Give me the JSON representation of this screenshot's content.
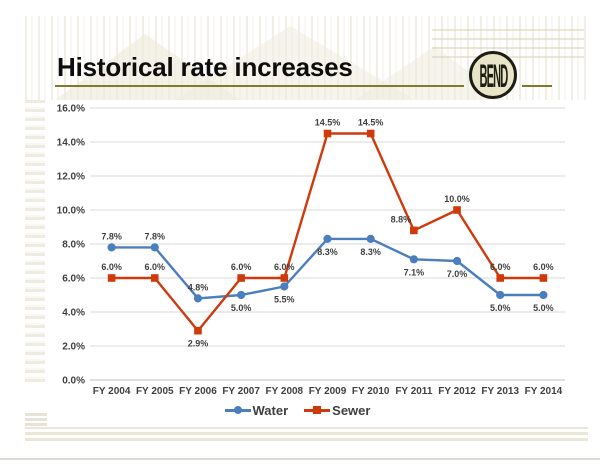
{
  "slide": {
    "title": "Historical rate increases",
    "logo_text": "BEND"
  },
  "chart_data": {
    "type": "line",
    "categories": [
      "FY 2004",
      "FY 2005",
      "FY 2006",
      "FY 2007",
      "FY 2008",
      "FY 2009",
      "FY 2010",
      "FY 2011",
      "FY 2012",
      "FY 2013",
      "FY 2014"
    ],
    "series": [
      {
        "name": "Water",
        "color": "#4A7EBD",
        "marker": "circle",
        "values": [
          7.8,
          7.8,
          4.8,
          5.0,
          5.5,
          8.3,
          8.3,
          7.1,
          7.0,
          5.0,
          5.0
        ],
        "labels": [
          "7.8%",
          "7.8%",
          "4.8%",
          "5.0%",
          "5.5%",
          "8.3%",
          "8.3%",
          "7.1%",
          "7.0%",
          "5.0%",
          "5.0%"
        ],
        "label_positions": [
          "above",
          "above",
          "above",
          "below",
          "below",
          "below",
          "below",
          "below",
          "below",
          "below",
          "below"
        ]
      },
      {
        "name": "Sewer",
        "color": "#CE3A0C",
        "marker": "square",
        "values": [
          6.0,
          6.0,
          2.9,
          6.0,
          6.0,
          14.5,
          14.5,
          8.8,
          10.0,
          6.0,
          6.0
        ],
        "labels": [
          "6.0%",
          "6.0%",
          "2.9%",
          "6.0%",
          "6.0%",
          "14.5%",
          "14.5%",
          "8.8%",
          "10.0%",
          "6.0%",
          "6.0%"
        ],
        "label_positions": [
          "above",
          "above",
          "below",
          "above",
          "above",
          "above",
          "above",
          "above-left",
          "above",
          "above",
          "above"
        ]
      }
    ],
    "ylim": [
      0,
      16
    ],
    "ytick_step": 2,
    "ytick_labels": [
      "0.0%",
      "2.0%",
      "4.0%",
      "6.0%",
      "8.0%",
      "10.0%",
      "12.0%",
      "14.0%",
      "16.0%"
    ],
    "grid": true,
    "legend_position": "bottom",
    "axis_label_color": "#404040",
    "data_label_color": "#3F3F3F",
    "grid_color": "#D9D9D9",
    "axis_line_color": "#BFBFBF"
  },
  "theme": {
    "underline_color": "#7F7B2A",
    "logo_bg": "#E9E5C9",
    "logo_ring": "#1E1D15",
    "watermark_color": "#E9E5D6"
  }
}
